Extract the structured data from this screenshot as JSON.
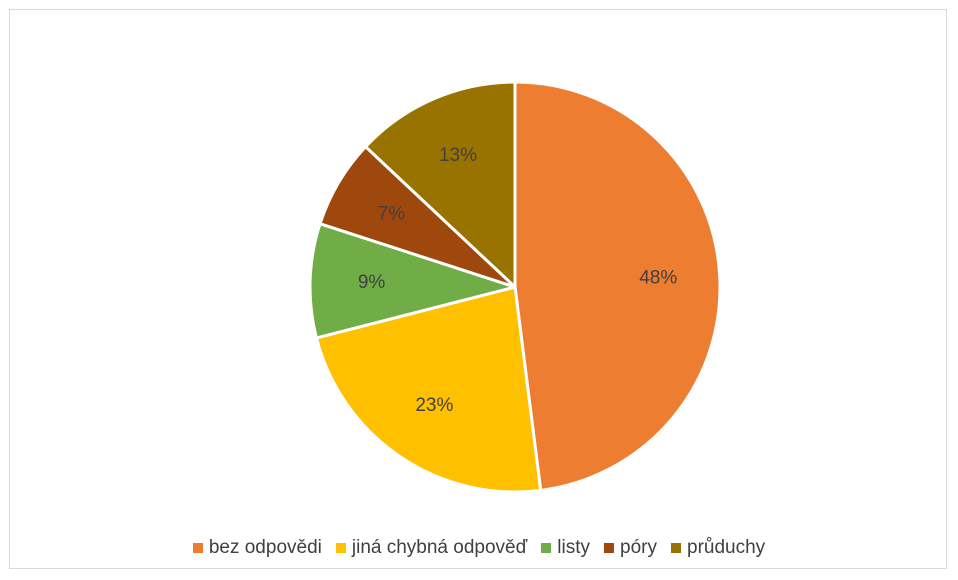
{
  "chart_data": {
    "type": "pie",
    "title": "",
    "slices": [
      {
        "label": "bez odpovědi",
        "value": 48,
        "display": "48%",
        "color": "#ed7d31"
      },
      {
        "label": "jiná chybná odpověď",
        "value": 23,
        "display": "23%",
        "color": "#ffc000"
      },
      {
        "label": "listy",
        "value": 9,
        "display": "9%",
        "color": "#70ad47"
      },
      {
        "label": "póry",
        "value": 7,
        "display": "7%",
        "color": "#9e480e"
      },
      {
        "label": "průduchy",
        "value": 13,
        "display": "13%",
        "color": "#997300"
      }
    ],
    "start_angle": "12 o'clock",
    "direction": "clockwise",
    "legend_position": "bottom"
  }
}
